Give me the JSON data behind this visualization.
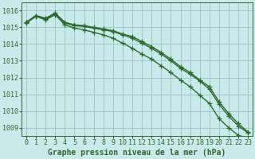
{
  "xlabel": "Graphe pression niveau de la mer (hPa)",
  "background_color": "#c8eaea",
  "grid_color": "#a0c8c8",
  "line_color": "#2d6a2d",
  "x": [
    0,
    1,
    2,
    3,
    4,
    5,
    6,
    7,
    8,
    9,
    10,
    11,
    12,
    13,
    14,
    15,
    16,
    17,
    18,
    19,
    20,
    21,
    22,
    23
  ],
  "line1": [
    1015.3,
    1015.7,
    1015.5,
    1015.8,
    1015.25,
    1015.1,
    1015.05,
    1014.95,
    1014.85,
    1014.75,
    1014.55,
    1014.35,
    1014.05,
    1013.75,
    1013.4,
    1013.0,
    1012.55,
    1012.2,
    1011.8,
    1011.3,
    1010.4,
    1009.7,
    1009.1,
    1008.7
  ],
  "line2": [
    1015.3,
    1015.7,
    1015.55,
    1015.85,
    1015.3,
    1015.15,
    1015.1,
    1015.0,
    1014.9,
    1014.8,
    1014.6,
    1014.45,
    1014.15,
    1013.85,
    1013.5,
    1013.1,
    1012.65,
    1012.3,
    1011.85,
    1011.45,
    1010.55,
    1009.85,
    1009.25,
    1008.75
  ],
  "line3": [
    1015.25,
    1015.65,
    1015.45,
    1015.75,
    1015.15,
    1014.95,
    1014.85,
    1014.7,
    1014.55,
    1014.35,
    1014.05,
    1013.75,
    1013.4,
    1013.1,
    1012.7,
    1012.3,
    1011.85,
    1011.45,
    1010.95,
    1010.45,
    1009.55,
    1009.0,
    1008.55,
    1008.3
  ],
  "ylim": [
    1008.5,
    1016.5
  ],
  "yticks": [
    1009,
    1010,
    1011,
    1012,
    1013,
    1014,
    1015,
    1016
  ],
  "xticks": [
    0,
    1,
    2,
    3,
    4,
    5,
    6,
    7,
    8,
    9,
    10,
    11,
    12,
    13,
    14,
    15,
    16,
    17,
    18,
    19,
    20,
    21,
    22,
    23
  ],
  "marker": "+",
  "markersize": 4,
  "linewidth": 1.0,
  "font_size": 6,
  "label_fontsize": 7,
  "figwidth": 3.2,
  "figheight": 2.0,
  "dpi": 100
}
